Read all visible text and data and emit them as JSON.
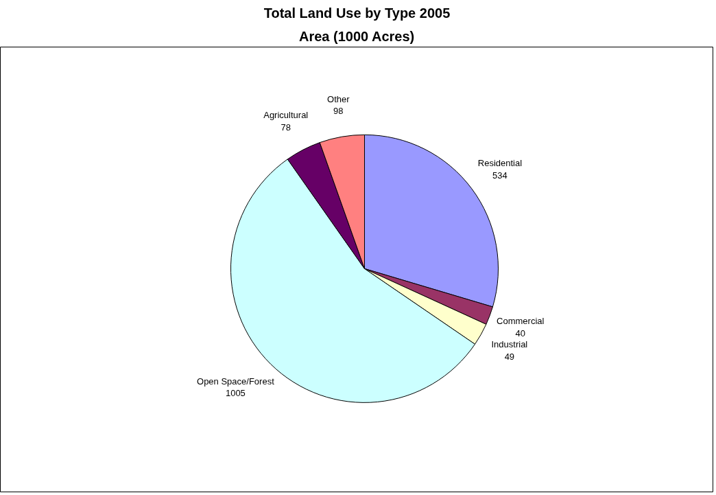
{
  "chart_data": {
    "type": "pie",
    "title": "Total Land Use by Type 2005",
    "subtitle": "Area (1000 Acres)",
    "categories": [
      "Residential",
      "Commercial",
      "Industrial",
      "Open Space/Forest",
      "Agricultural",
      "Other"
    ],
    "values": [
      534,
      40,
      49,
      1005,
      78,
      98
    ],
    "colors": [
      "#9999ff",
      "#993366",
      "#ffffcc",
      "#ccffff",
      "#660066",
      "#ff8080"
    ],
    "data_labels": true
  }
}
